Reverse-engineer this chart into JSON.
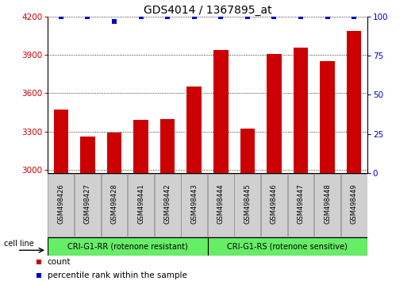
{
  "title": "GDS4014 / 1367895_at",
  "samples": [
    "GSM498426",
    "GSM498427",
    "GSM498428",
    "GSM498441",
    "GSM498442",
    "GSM498443",
    "GSM498444",
    "GSM498445",
    "GSM498446",
    "GSM498447",
    "GSM498448",
    "GSM498449"
  ],
  "counts": [
    3470,
    3260,
    3290,
    3390,
    3400,
    3655,
    3940,
    3320,
    3910,
    3960,
    3850,
    4090
  ],
  "percentile_ranks": [
    100,
    100,
    97,
    100,
    100,
    100,
    100,
    100,
    100,
    100,
    100,
    100
  ],
  "bar_color": "#cc0000",
  "dot_color": "#0000cc",
  "ylim_left": [
    2975,
    4200
  ],
  "ylim_right": [
    0,
    100
  ],
  "yticks_left": [
    3000,
    3300,
    3600,
    3900,
    4200
  ],
  "yticks_right": [
    0,
    25,
    50,
    75,
    100
  ],
  "group1_label": "CRI-G1-RR (rotenone resistant)",
  "group2_label": "CRI-G1-RS (rotenone sensitive)",
  "group1_count": 6,
  "group2_count": 6,
  "cell_line_label": "cell line",
  "legend_count": "count",
  "legend_percentile": "percentile rank within the sample",
  "group_bg_color": "#66ee66",
  "tick_label_bg": "#d0d0d0",
  "title_fontsize": 10,
  "tick_fontsize": 7.5,
  "left_axis_color": "#cc0000",
  "right_axis_color": "#0000cc",
  "bar_width": 0.55
}
